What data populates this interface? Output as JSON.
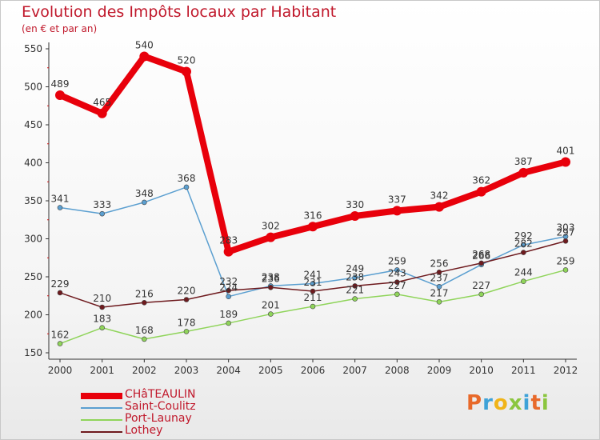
{
  "header": {
    "title": "Evolution des Impôts locaux par Habitant",
    "subtitle": "(en € et par an)"
  },
  "logo": {
    "text": "Proxiti",
    "letter_colors": [
      "#e8692a",
      "#3ea2d8",
      "#f0b418",
      "#8bc63f",
      "#3ea2d8",
      "#e8692a",
      "#8bc63f"
    ]
  },
  "chart_data": {
    "type": "line",
    "title": "Evolution des Impôts locaux par Habitant",
    "subtitle": "(en € et par an)",
    "xlabel": "",
    "ylabel": "",
    "ylim": [
      150,
      550
    ],
    "yticks": [
      150,
      200,
      250,
      300,
      350,
      400,
      450,
      500,
      550
    ],
    "grid": false,
    "legend_position": "bottom-left",
    "categories": [
      "2000",
      "2001",
      "2002",
      "2003",
      "2004",
      "2005",
      "2006",
      "2007",
      "2008",
      "2009",
      "2010",
      "2011",
      "2012"
    ],
    "series": [
      {
        "name": "CHâTEAULIN",
        "color": "#e8000b",
        "emphasis": true,
        "values": [
          489,
          465,
          540,
          520,
          283,
          302,
          316,
          330,
          337,
          342,
          362,
          387,
          401
        ],
        "labels": [
          "489",
          "465",
          "540",
          "520",
          "283",
          "302",
          "316",
          "330",
          "337",
          "342",
          "362",
          "387",
          "401"
        ]
      },
      {
        "name": "Saint-Coulitz",
        "color": "#5b9fd0",
        "values": [
          341,
          333,
          348,
          368,
          224,
          238,
          241,
          249,
          259,
          237,
          266,
          292,
          303
        ],
        "labels": [
          "341",
          "333",
          "348",
          "368",
          "224",
          "238",
          "241",
          "249",
          "259",
          "237",
          "266",
          "292",
          "303"
        ]
      },
      {
        "name": "Port-Launay",
        "color": "#8fd45a",
        "values": [
          162,
          183,
          168,
          178,
          189,
          201,
          211,
          221,
          227,
          217,
          227,
          244,
          259
        ],
        "labels": [
          "162",
          "183",
          "168",
          "178",
          "189",
          "201",
          "211",
          "221",
          "227",
          "217",
          "227",
          "244",
          "259"
        ]
      },
      {
        "name": "Lothey",
        "color": "#6e1a1e",
        "values": [
          229,
          210,
          216,
          220,
          232,
          236,
          231,
          238,
          243,
          256,
          268,
          282,
          297
        ],
        "labels": [
          "229",
          "210",
          "216",
          "220",
          "232",
          "236",
          "231",
          "238",
          "243",
          "256",
          "268",
          "282",
          "297"
        ]
      }
    ]
  }
}
